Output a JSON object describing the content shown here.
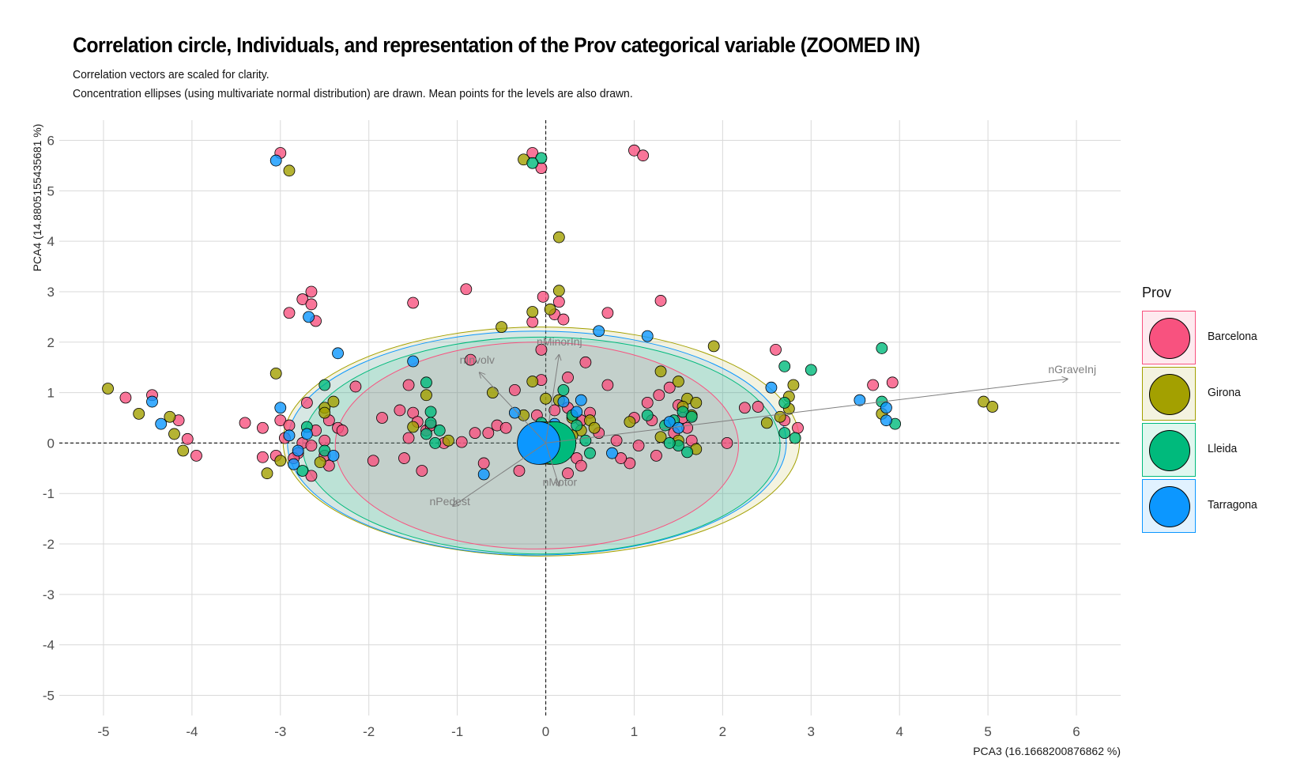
{
  "title": "Correlation circle, Individuals, and representation of the Prov categorical variable (ZOOMED IN)",
  "subtitle_line1": "Correlation vectors are scaled for clarity.",
  "subtitle_line2": "Concentration ellipses (using multivariate normal distribution) are drawn. Mean points for the levels are also drawn.",
  "colors": {
    "Barcelona": "#f8527f",
    "Girona": "#a3a000",
    "Lleida": "#00ba7c",
    "Tarragona": "#0c97ff",
    "grid": "#d9d9d9",
    "vector": "#7f7f7f"
  },
  "chart_data": {
    "type": "scatter",
    "xlabel": "PCA3 (16.1668200876862 %)",
    "ylabel": "PCA4 (14.8805155435681 %)",
    "xlim": [
      -5.5,
      6.5
    ],
    "ylim": [
      -5.4,
      6.4
    ],
    "x_ticks": [
      -5,
      -4,
      -3,
      -2,
      -1,
      0,
      1,
      2,
      3,
      4,
      5,
      6
    ],
    "y_ticks": [
      -5,
      -4,
      -3,
      -2,
      -1,
      0,
      1,
      2,
      3,
      4,
      5,
      6
    ],
    "grid": true,
    "reference_lines": {
      "x": 0,
      "y": 0,
      "style": "dashed"
    },
    "legend": {
      "title": "Prov",
      "position": "right",
      "entries": [
        "Barcelona",
        "Girona",
        "Lleida",
        "Tarragona"
      ]
    },
    "vectors": [
      {
        "name": "nGraveInj",
        "x": 5.9,
        "y": 1.27
      },
      {
        "name": "nMinorInj",
        "x": 0.15,
        "y": 1.75
      },
      {
        "name": "nInvolv",
        "x": -0.75,
        "y": 1.4
      },
      {
        "name": "nPedest",
        "x": -1.05,
        "y": -1.25
      },
      {
        "name": "nMotor",
        "x": 0.15,
        "y": -0.85
      }
    ],
    "ellipses": [
      {
        "group": "Girona",
        "cx": -0.05,
        "cy": 0.03,
        "rx": 2.92,
        "ry": 2.27
      },
      {
        "group": "Tarragona",
        "cx": -0.1,
        "cy": 0.0,
        "rx": 2.82,
        "ry": 2.22
      },
      {
        "group": "Lleida",
        "cx": -0.05,
        "cy": -0.05,
        "rx": 2.7,
        "ry": 2.15
      },
      {
        "group": "Barcelona",
        "cx": -0.1,
        "cy": -0.05,
        "rx": 2.28,
        "ry": 2.05
      }
    ],
    "means": [
      {
        "group": "Barcelona",
        "x": -0.05,
        "y": 0.0
      },
      {
        "group": "Girona",
        "x": 0.05,
        "y": 0.0
      },
      {
        "group": "Lleida",
        "x": 0.1,
        "y": 0.0
      },
      {
        "group": "Tarragona",
        "x": -0.08,
        "y": 0.0
      }
    ],
    "series": [
      {
        "name": "Barcelona",
        "points": [
          [
            -3.0,
            5.75
          ],
          [
            -0.15,
            5.75
          ],
          [
            -0.05,
            5.45
          ],
          [
            1.0,
            5.8
          ],
          [
            1.1,
            5.7
          ],
          [
            -2.75,
            2.85
          ],
          [
            -2.65,
            3.0
          ],
          [
            -2.65,
            2.75
          ],
          [
            -2.9,
            2.58
          ],
          [
            -2.6,
            2.42
          ],
          [
            -1.5,
            2.78
          ],
          [
            -0.9,
            3.05
          ],
          [
            -0.03,
            2.9
          ],
          [
            0.15,
            2.8
          ],
          [
            0.1,
            2.55
          ],
          [
            0.2,
            2.45
          ],
          [
            -0.15,
            2.4
          ],
          [
            0.7,
            2.58
          ],
          [
            1.3,
            2.82
          ],
          [
            2.6,
            1.85
          ],
          [
            -0.05,
            1.85
          ],
          [
            -0.85,
            1.65
          ],
          [
            -2.15,
            1.12
          ],
          [
            -1.55,
            1.15
          ],
          [
            -4.75,
            0.9
          ],
          [
            -4.45,
            0.95
          ],
          [
            -4.15,
            0.45
          ],
          [
            -4.05,
            0.08
          ],
          [
            -3.95,
            -0.25
          ],
          [
            -3.4,
            0.4
          ],
          [
            -3.2,
            0.3
          ],
          [
            -3.0,
            0.45
          ],
          [
            -2.9,
            0.35
          ],
          [
            -3.2,
            -0.28
          ],
          [
            -3.05,
            -0.25
          ],
          [
            -2.95,
            0.1
          ],
          [
            -2.65,
            -0.65
          ],
          [
            -2.5,
            0.05
          ],
          [
            -2.45,
            -0.45
          ],
          [
            3.7,
            1.15
          ],
          [
            3.92,
            1.2
          ],
          [
            2.7,
            0.45
          ],
          [
            2.85,
            0.3
          ],
          [
            2.25,
            0.7
          ],
          [
            2.4,
            0.72
          ],
          [
            1.15,
            0.8
          ],
          [
            1.28,
            0.95
          ],
          [
            1.4,
            1.1
          ],
          [
            1.5,
            0.75
          ],
          [
            1.55,
            0.5
          ],
          [
            1.2,
            0.45
          ],
          [
            1.0,
            0.5
          ],
          [
            1.45,
            0.2
          ],
          [
            1.6,
            0.3
          ],
          [
            1.65,
            0.05
          ],
          [
            2.05,
            0.0
          ],
          [
            1.05,
            -0.05
          ],
          [
            0.8,
            0.05
          ],
          [
            0.95,
            -0.4
          ],
          [
            0.85,
            -0.3
          ],
          [
            1.25,
            -0.25
          ],
          [
            -1.5,
            0.6
          ],
          [
            -1.45,
            0.42
          ],
          [
            -1.35,
            0.25
          ],
          [
            -1.3,
            0.35
          ],
          [
            -1.55,
            0.1
          ],
          [
            -1.6,
            -0.3
          ],
          [
            -1.4,
            -0.55
          ],
          [
            -1.65,
            0.65
          ],
          [
            -1.85,
            0.5
          ],
          [
            -1.95,
            -0.35
          ],
          [
            -1.15,
            0.0
          ],
          [
            -0.95,
            0.02
          ],
          [
            -0.8,
            0.2
          ],
          [
            -0.65,
            0.2
          ],
          [
            -0.55,
            0.35
          ],
          [
            -0.45,
            0.3
          ],
          [
            -0.35,
            1.05
          ],
          [
            -0.05,
            1.25
          ],
          [
            0.25,
            1.3
          ],
          [
            0.45,
            1.6
          ],
          [
            0.7,
            1.15
          ],
          [
            0.25,
            0.7
          ],
          [
            0.4,
            0.45
          ],
          [
            0.5,
            0.6
          ],
          [
            0.6,
            0.2
          ],
          [
            0.35,
            -0.3
          ],
          [
            0.4,
            -0.45
          ],
          [
            0.25,
            -0.6
          ],
          [
            -0.3,
            -0.55
          ],
          [
            -0.7,
            -0.4
          ],
          [
            0.1,
            0.65
          ],
          [
            -0.1,
            0.55
          ],
          [
            -2.7,
            0.8
          ],
          [
            -2.35,
            0.3
          ],
          [
            -2.45,
            0.45
          ],
          [
            -2.6,
            0.25
          ],
          [
            -2.75,
            0.0
          ],
          [
            -2.8,
            -0.2
          ],
          [
            -2.85,
            -0.3
          ],
          [
            -2.5,
            -0.25
          ],
          [
            -2.65,
            -0.05
          ],
          [
            -2.3,
            0.25
          ]
        ]
      },
      {
        "name": "Girona",
        "points": [
          [
            -2.9,
            5.4
          ],
          [
            -0.25,
            5.62
          ],
          [
            0.15,
            4.08
          ],
          [
            0.15,
            3.02
          ],
          [
            -0.15,
            2.6
          ],
          [
            0.05,
            2.65
          ],
          [
            -0.5,
            2.3
          ],
          [
            1.9,
            1.92
          ],
          [
            -3.05,
            1.38
          ],
          [
            -2.5,
            0.7
          ],
          [
            -4.95,
            1.08
          ],
          [
            -4.6,
            0.58
          ],
          [
            -4.25,
            0.52
          ],
          [
            -4.2,
            0.18
          ],
          [
            -4.1,
            -0.15
          ],
          [
            -3.15,
            -0.6
          ],
          [
            -3.0,
            -0.35
          ],
          [
            -2.55,
            -0.38
          ],
          [
            -2.4,
            0.82
          ],
          [
            -2.5,
            0.6
          ],
          [
            -1.5,
            0.32
          ],
          [
            -1.35,
            0.95
          ],
          [
            -1.1,
            0.05
          ],
          [
            -0.6,
            1.0
          ],
          [
            -0.15,
            1.22
          ],
          [
            0.0,
            0.88
          ],
          [
            0.15,
            0.85
          ],
          [
            0.3,
            0.5
          ],
          [
            0.4,
            0.25
          ],
          [
            0.5,
            0.45
          ],
          [
            0.55,
            0.3
          ],
          [
            0.95,
            0.42
          ],
          [
            1.3,
            1.42
          ],
          [
            1.5,
            1.22
          ],
          [
            1.6,
            0.88
          ],
          [
            1.7,
            0.8
          ],
          [
            1.55,
            0.72
          ],
          [
            1.65,
            0.55
          ],
          [
            1.3,
            0.12
          ],
          [
            1.5,
            0.05
          ],
          [
            1.7,
            -0.12
          ],
          [
            2.5,
            0.4
          ],
          [
            2.65,
            0.52
          ],
          [
            2.75,
            0.68
          ],
          [
            2.75,
            0.92
          ],
          [
            2.8,
            1.15
          ],
          [
            3.8,
            0.58
          ],
          [
            4.95,
            0.82
          ],
          [
            5.05,
            0.72
          ],
          [
            0.3,
            0.15
          ],
          [
            -0.25,
            0.55
          ],
          [
            0.1,
            0.3
          ]
        ]
      },
      {
        "name": "Lleida",
        "points": [
          [
            -0.05,
            5.65
          ],
          [
            -0.15,
            5.55
          ],
          [
            -2.5,
            1.15
          ],
          [
            -2.7,
            0.32
          ],
          [
            -2.5,
            -0.15
          ],
          [
            -2.75,
            -0.55
          ],
          [
            -1.3,
            0.62
          ],
          [
            -1.35,
            0.18
          ],
          [
            -1.25,
            0.0
          ],
          [
            -1.3,
            0.4
          ],
          [
            -1.2,
            0.25
          ],
          [
            -1.35,
            1.2
          ],
          [
            0.2,
            1.05
          ],
          [
            0.35,
            0.35
          ],
          [
            0.45,
            0.05
          ],
          [
            0.5,
            -0.2
          ],
          [
            0.3,
            0.55
          ],
          [
            0.15,
            0.3
          ],
          [
            1.15,
            0.55
          ],
          [
            1.35,
            0.35
          ],
          [
            1.45,
            0.45
          ],
          [
            1.55,
            0.62
          ],
          [
            1.65,
            0.52
          ],
          [
            1.5,
            -0.05
          ],
          [
            1.6,
            -0.18
          ],
          [
            1.4,
            0.0
          ],
          [
            2.7,
            1.52
          ],
          [
            3.0,
            1.45
          ],
          [
            3.8,
            1.88
          ],
          [
            3.8,
            0.82
          ],
          [
            3.95,
            0.38
          ],
          [
            2.7,
            0.2
          ],
          [
            2.82,
            0.1
          ],
          [
            2.7,
            0.8
          ],
          [
            -0.05,
            0.4
          ],
          [
            0.2,
            0.15
          ]
        ]
      },
      {
        "name": "Tarragona",
        "points": [
          [
            -3.05,
            5.6
          ],
          [
            -2.68,
            2.5
          ],
          [
            -2.35,
            1.78
          ],
          [
            -1.5,
            1.62
          ],
          [
            0.6,
            2.22
          ],
          [
            1.15,
            2.12
          ],
          [
            2.55,
            1.1
          ],
          [
            -4.45,
            0.82
          ],
          [
            -4.35,
            0.38
          ],
          [
            -3.0,
            0.7
          ],
          [
            -2.9,
            0.15
          ],
          [
            -2.7,
            0.18
          ],
          [
            -2.8,
            -0.15
          ],
          [
            -2.4,
            -0.25
          ],
          [
            -2.85,
            -0.42
          ],
          [
            -0.35,
            0.6
          ],
          [
            -0.7,
            -0.62
          ],
          [
            0.2,
            0.82
          ],
          [
            0.4,
            0.85
          ],
          [
            0.35,
            0.62
          ],
          [
            0.1,
            0.38
          ],
          [
            0.15,
            0.05
          ],
          [
            0.75,
            -0.2
          ],
          [
            1.4,
            0.42
          ],
          [
            1.5,
            0.3
          ],
          [
            3.55,
            0.85
          ],
          [
            3.85,
            0.7
          ],
          [
            3.85,
            0.45
          ]
        ]
      }
    ]
  }
}
